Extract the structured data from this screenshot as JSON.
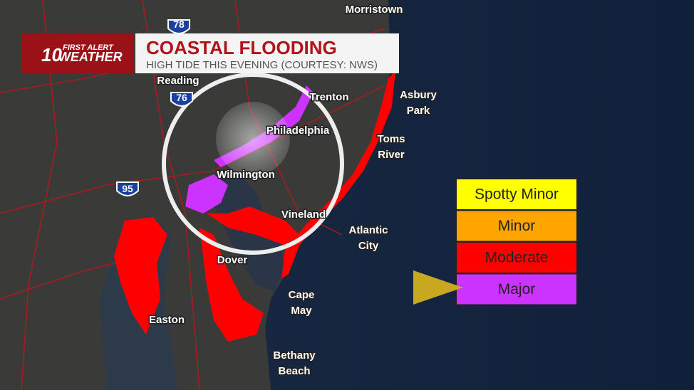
{
  "header": {
    "logo_number": "10",
    "logo_line1": "FIRST ALERT",
    "logo_line2": "WEATHER",
    "title": "COASTAL FLOODING",
    "subtitle": "HIGH TIDE THIS EVENING (COURTESY: NWS)"
  },
  "map": {
    "places": [
      {
        "lines": [
          "Morristown"
        ]
      },
      {
        "lines": [
          "Reading"
        ]
      },
      {
        "lines": [
          "Trenton"
        ]
      },
      {
        "lines": [
          "Asbury",
          "Park"
        ]
      },
      {
        "lines": [
          "Philadelphia"
        ]
      },
      {
        "lines": [
          "Toms",
          "River"
        ]
      },
      {
        "lines": [
          "Wilmington"
        ]
      },
      {
        "lines": [
          "Vineland"
        ]
      },
      {
        "lines": [
          "Atlantic",
          "City"
        ]
      },
      {
        "lines": [
          "Dover"
        ]
      },
      {
        "lines": [
          "Cape",
          "May"
        ]
      },
      {
        "lines": [
          "Easton"
        ]
      },
      {
        "lines": [
          "Bethany",
          "Beach"
        ]
      }
    ],
    "highways": [
      "78",
      "76",
      "95"
    ]
  },
  "legend": {
    "items": [
      {
        "label": "Spotty Minor",
        "color": "#ffff00"
      },
      {
        "label": "Minor",
        "color": "#ffa500"
      },
      {
        "label": "Moderate",
        "color": "#ff0000"
      },
      {
        "label": "Major",
        "color": "#cc33ff"
      }
    ]
  }
}
